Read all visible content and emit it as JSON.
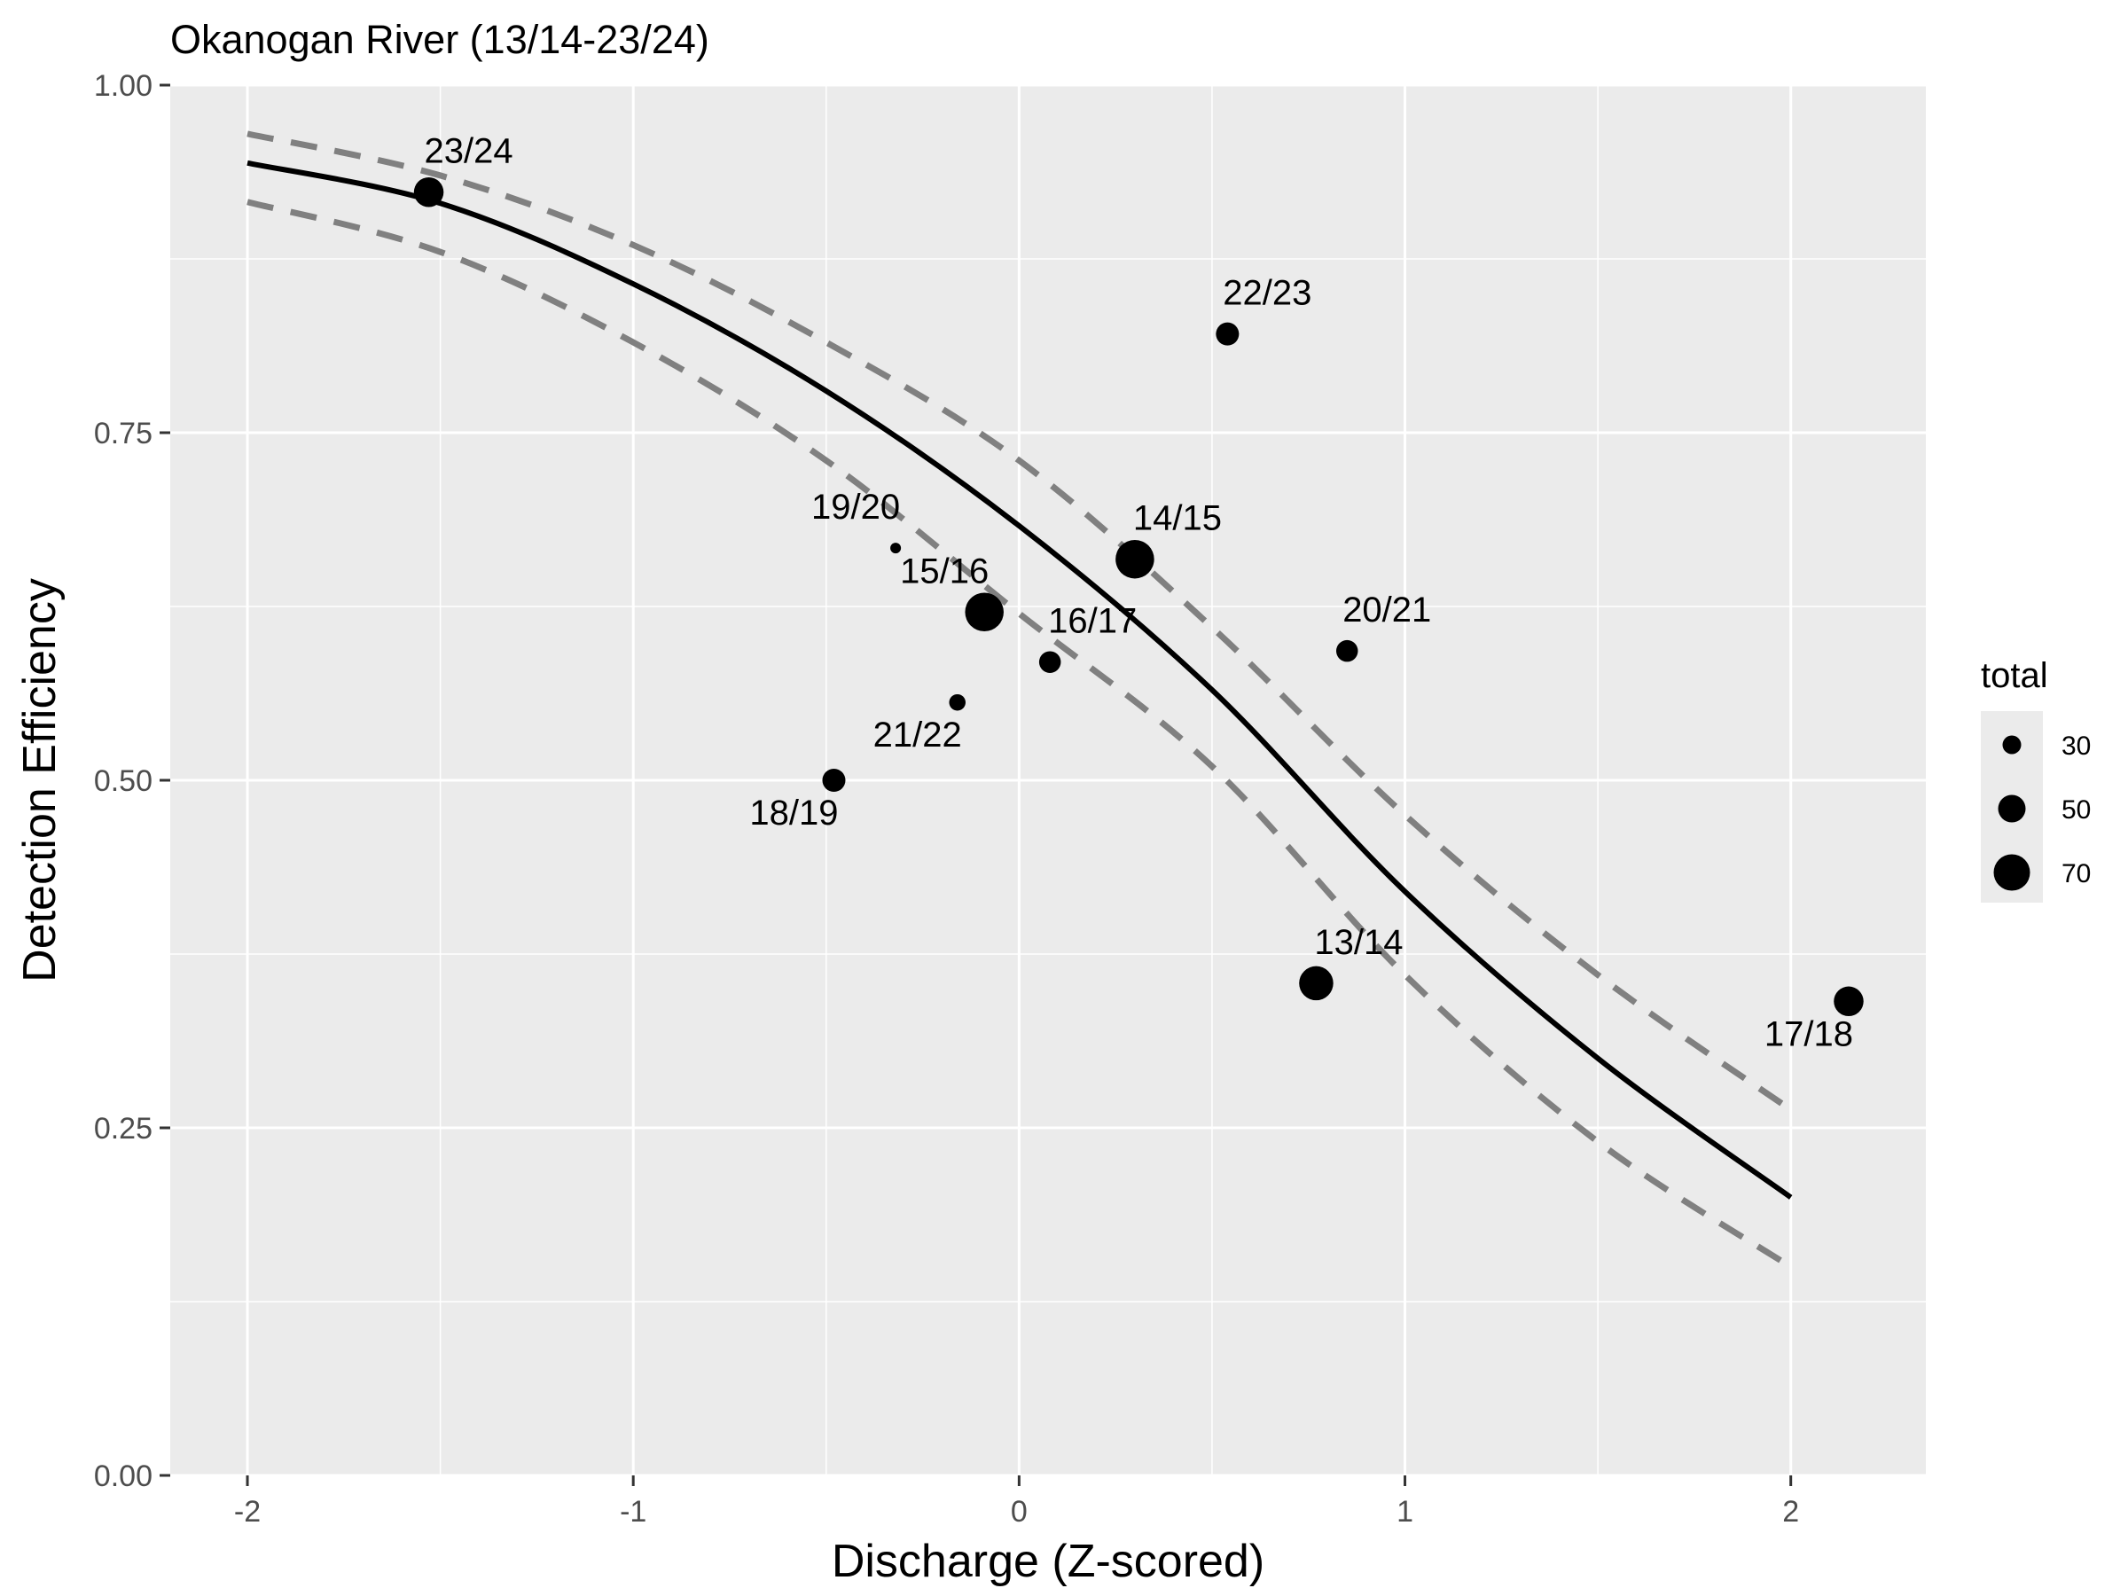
{
  "chart_data": {
    "type": "scatter",
    "title": "Okanogan River (13/14-23/24)",
    "xlabel": "Discharge (Z-scored)",
    "ylabel": "Detection Efficiency",
    "xlim": [
      -2.2,
      2.35
    ],
    "ylim": [
      0,
      1
    ],
    "x_ticks": [
      -2,
      -1,
      0,
      1,
      2
    ],
    "x_tick_labels": [
      "-2",
      "-1",
      "0",
      "1",
      "2"
    ],
    "y_ticks": [
      0,
      0.25,
      0.5,
      0.75,
      1
    ],
    "y_tick_labels": [
      "0.00",
      "0.25",
      "0.50",
      "0.75",
      "1.00"
    ],
    "grid": true,
    "panel_background": "#ebebeb",
    "point_color": "#000000",
    "fit_color": "#000000",
    "ci_color": "#808080",
    "points": [
      {
        "label": "23/24",
        "x": -1.53,
        "y": 0.923,
        "total": 55
      },
      {
        "label": "22/23",
        "x": 0.54,
        "y": 0.821,
        "total": 40
      },
      {
        "label": "19/20",
        "x": -0.32,
        "y": 0.667,
        "total": 12
      },
      {
        "label": "14/15",
        "x": 0.3,
        "y": 0.659,
        "total": 75
      },
      {
        "label": "15/16",
        "x": -0.09,
        "y": 0.621,
        "total": 75
      },
      {
        "label": "16/17",
        "x": 0.08,
        "y": 0.585,
        "total": 37
      },
      {
        "label": "20/21",
        "x": 0.85,
        "y": 0.593,
        "total": 37
      },
      {
        "label": "21/22",
        "x": -0.16,
        "y": 0.556,
        "total": 25
      },
      {
        "label": "18/19",
        "x": -0.48,
        "y": 0.5,
        "total": 40
      },
      {
        "label": "13/14",
        "x": 0.77,
        "y": 0.354,
        "total": 65
      },
      {
        "label": "17/18",
        "x": 2.15,
        "y": 0.341,
        "total": 55
      }
    ],
    "fit": {
      "x": [
        -2,
        -1.5,
        -1,
        -0.5,
        0,
        0.5,
        1,
        1.5,
        2
      ],
      "y": [
        0.944,
        0.915,
        0.857,
        0.78,
        0.683,
        0.565,
        0.42,
        0.3,
        0.2
      ]
    },
    "ci_upper": {
      "x": [
        -2,
        -1.5,
        -1,
        -0.5,
        0,
        0.5,
        1,
        1.5,
        2
      ],
      "y": [
        0.965,
        0.935,
        0.885,
        0.815,
        0.73,
        0.61,
        0.475,
        0.36,
        0.263
      ]
    },
    "ci_lower": {
      "x": [
        -2,
        -1.5,
        -1,
        -0.5,
        0,
        0.5,
        1,
        1.5,
        2
      ],
      "y": [
        0.916,
        0.88,
        0.815,
        0.73,
        0.62,
        0.51,
        0.36,
        0.24,
        0.15
      ]
    },
    "legend": {
      "title": "total",
      "position": "right",
      "entries": [
        {
          "label": "30",
          "value": 30
        },
        {
          "label": "50",
          "value": 50
        },
        {
          "label": "70",
          "value": 70
        }
      ],
      "key_background": "#ebebeb"
    }
  }
}
